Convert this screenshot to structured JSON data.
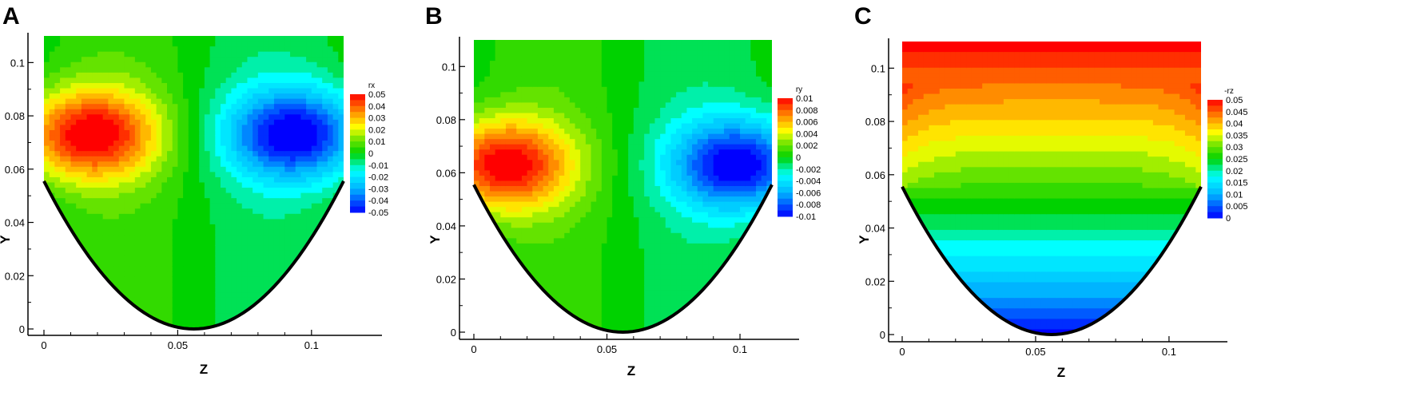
{
  "chart_data": [
    {
      "panel_label": "A",
      "type": "heatmap",
      "xlabel": "Z",
      "ylabel": "Y",
      "xlim": [
        0,
        0.112
      ],
      "ylim": [
        0,
        0.11
      ],
      "xticks": [
        "0",
        "0.05",
        "0.1"
      ],
      "yticks": [
        "0",
        "0.02",
        "0.04",
        "0.06",
        "0.08",
        "0.1"
      ],
      "field_pattern": "antisymmetric",
      "boundary": "parabolic bottom wall from (0, 0.0555) through (0.056, 0) to (0.112, 0.0555)",
      "extrema": [
        {
          "z": 0.017,
          "y": 0.073,
          "value": 0.05
        },
        {
          "z": 0.094,
          "y": 0.073,
          "value": -0.05
        }
      ],
      "colorbar": {
        "title": "rx",
        "min": -0.05,
        "max": 0.05,
        "labels": [
          "0.05",
          "0.04",
          "0.03",
          "0.02",
          "0.01",
          "0",
          "-0.01",
          "-0.02",
          "-0.03",
          "-0.04",
          "-0.05"
        ]
      }
    },
    {
      "panel_label": "B",
      "type": "heatmap",
      "xlabel": "Z",
      "ylabel": "Y",
      "xlim": [
        0,
        0.112
      ],
      "ylim": [
        0,
        0.11
      ],
      "xticks": [
        "0",
        "0.05",
        "0.1"
      ],
      "yticks": [
        "0",
        "0.02",
        "0.04",
        "0.06",
        "0.08",
        "0.1"
      ],
      "field_pattern": "antisymmetric",
      "boundary": "parabolic bottom wall from (0, 0.0555) through (0.056, 0) to (0.112, 0.0555)",
      "extrema": [
        {
          "z": 0.011,
          "y": 0.063,
          "value": 0.01
        },
        {
          "z": 0.1,
          "y": 0.063,
          "value": -0.01
        }
      ],
      "colorbar": {
        "title": "ry",
        "min": -0.01,
        "max": 0.01,
        "labels": [
          "0.01",
          "0.008",
          "0.006",
          "0.004",
          "0.002",
          "0",
          "-0.002",
          "-0.004",
          "-0.006",
          "-0.008",
          "-0.01"
        ]
      }
    },
    {
      "panel_label": "C",
      "type": "heatmap",
      "xlabel": "Z",
      "ylabel": "Y",
      "xlim": [
        0,
        0.112
      ],
      "ylim": [
        0,
        0.11
      ],
      "xticks": [
        "0",
        "0.05",
        "0.1"
      ],
      "yticks": [
        "0",
        "0.02",
        "0.04",
        "0.06",
        "0.08",
        "0.1"
      ],
      "field_pattern": "vertical-gradient",
      "boundary": "parabolic bottom wall from (0, 0.0555) through (0.056, 0) to (0.112, 0.0555)",
      "extrema": [
        {
          "z": 0.056,
          "y": 0.0,
          "value": 0.0
        },
        {
          "z": 0.056,
          "y": 0.11,
          "value": 0.05
        }
      ],
      "colorbar": {
        "title": "-rz",
        "min": 0,
        "max": 0.05,
        "labels": [
          "0.05",
          "0.045",
          "0.04",
          "0.035",
          "0.03",
          "0.025",
          "0.02",
          "0.015",
          "0.01",
          "0.005",
          "0"
        ]
      }
    }
  ]
}
